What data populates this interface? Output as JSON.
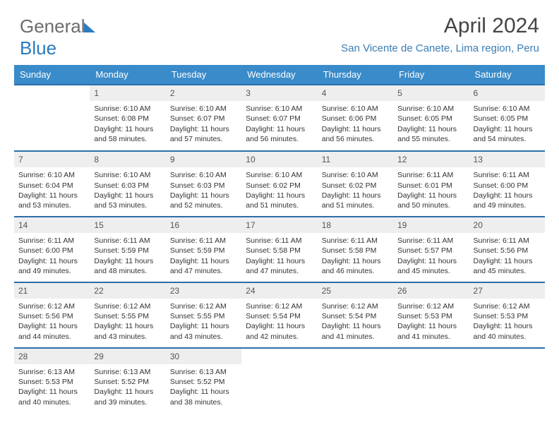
{
  "logo": {
    "text_general": "General",
    "text_blue": "Blue"
  },
  "header": {
    "title": "April 2024",
    "location": "San Vicente de Canete, Lima region, Peru"
  },
  "colors": {
    "header_bg": "#3a8bc9",
    "header_text": "#ffffff",
    "week_border": "#2b6fa8",
    "daynum_bg": "#eeeeee",
    "logo_gray": "#6c6c6c",
    "logo_blue": "#2b7bbf",
    "location_text": "#3a7db5"
  },
  "day_labels": [
    "Sunday",
    "Monday",
    "Tuesday",
    "Wednesday",
    "Thursday",
    "Friday",
    "Saturday"
  ],
  "weeks": [
    [
      {
        "n": "",
        "lines": [
          "",
          "",
          "",
          ""
        ]
      },
      {
        "n": "1",
        "lines": [
          "Sunrise: 6:10 AM",
          "Sunset: 6:08 PM",
          "Daylight: 11 hours",
          "and 58 minutes."
        ]
      },
      {
        "n": "2",
        "lines": [
          "Sunrise: 6:10 AM",
          "Sunset: 6:07 PM",
          "Daylight: 11 hours",
          "and 57 minutes."
        ]
      },
      {
        "n": "3",
        "lines": [
          "Sunrise: 6:10 AM",
          "Sunset: 6:07 PM",
          "Daylight: 11 hours",
          "and 56 minutes."
        ]
      },
      {
        "n": "4",
        "lines": [
          "Sunrise: 6:10 AM",
          "Sunset: 6:06 PM",
          "Daylight: 11 hours",
          "and 56 minutes."
        ]
      },
      {
        "n": "5",
        "lines": [
          "Sunrise: 6:10 AM",
          "Sunset: 6:05 PM",
          "Daylight: 11 hours",
          "and 55 minutes."
        ]
      },
      {
        "n": "6",
        "lines": [
          "Sunrise: 6:10 AM",
          "Sunset: 6:05 PM",
          "Daylight: 11 hours",
          "and 54 minutes."
        ]
      }
    ],
    [
      {
        "n": "7",
        "lines": [
          "Sunrise: 6:10 AM",
          "Sunset: 6:04 PM",
          "Daylight: 11 hours",
          "and 53 minutes."
        ]
      },
      {
        "n": "8",
        "lines": [
          "Sunrise: 6:10 AM",
          "Sunset: 6:03 PM",
          "Daylight: 11 hours",
          "and 53 minutes."
        ]
      },
      {
        "n": "9",
        "lines": [
          "Sunrise: 6:10 AM",
          "Sunset: 6:03 PM",
          "Daylight: 11 hours",
          "and 52 minutes."
        ]
      },
      {
        "n": "10",
        "lines": [
          "Sunrise: 6:10 AM",
          "Sunset: 6:02 PM",
          "Daylight: 11 hours",
          "and 51 minutes."
        ]
      },
      {
        "n": "11",
        "lines": [
          "Sunrise: 6:10 AM",
          "Sunset: 6:02 PM",
          "Daylight: 11 hours",
          "and 51 minutes."
        ]
      },
      {
        "n": "12",
        "lines": [
          "Sunrise: 6:11 AM",
          "Sunset: 6:01 PM",
          "Daylight: 11 hours",
          "and 50 minutes."
        ]
      },
      {
        "n": "13",
        "lines": [
          "Sunrise: 6:11 AM",
          "Sunset: 6:00 PM",
          "Daylight: 11 hours",
          "and 49 minutes."
        ]
      }
    ],
    [
      {
        "n": "14",
        "lines": [
          "Sunrise: 6:11 AM",
          "Sunset: 6:00 PM",
          "Daylight: 11 hours",
          "and 49 minutes."
        ]
      },
      {
        "n": "15",
        "lines": [
          "Sunrise: 6:11 AM",
          "Sunset: 5:59 PM",
          "Daylight: 11 hours",
          "and 48 minutes."
        ]
      },
      {
        "n": "16",
        "lines": [
          "Sunrise: 6:11 AM",
          "Sunset: 5:59 PM",
          "Daylight: 11 hours",
          "and 47 minutes."
        ]
      },
      {
        "n": "17",
        "lines": [
          "Sunrise: 6:11 AM",
          "Sunset: 5:58 PM",
          "Daylight: 11 hours",
          "and 47 minutes."
        ]
      },
      {
        "n": "18",
        "lines": [
          "Sunrise: 6:11 AM",
          "Sunset: 5:58 PM",
          "Daylight: 11 hours",
          "and 46 minutes."
        ]
      },
      {
        "n": "19",
        "lines": [
          "Sunrise: 6:11 AM",
          "Sunset: 5:57 PM",
          "Daylight: 11 hours",
          "and 45 minutes."
        ]
      },
      {
        "n": "20",
        "lines": [
          "Sunrise: 6:11 AM",
          "Sunset: 5:56 PM",
          "Daylight: 11 hours",
          "and 45 minutes."
        ]
      }
    ],
    [
      {
        "n": "21",
        "lines": [
          "Sunrise: 6:12 AM",
          "Sunset: 5:56 PM",
          "Daylight: 11 hours",
          "and 44 minutes."
        ]
      },
      {
        "n": "22",
        "lines": [
          "Sunrise: 6:12 AM",
          "Sunset: 5:55 PM",
          "Daylight: 11 hours",
          "and 43 minutes."
        ]
      },
      {
        "n": "23",
        "lines": [
          "Sunrise: 6:12 AM",
          "Sunset: 5:55 PM",
          "Daylight: 11 hours",
          "and 43 minutes."
        ]
      },
      {
        "n": "24",
        "lines": [
          "Sunrise: 6:12 AM",
          "Sunset: 5:54 PM",
          "Daylight: 11 hours",
          "and 42 minutes."
        ]
      },
      {
        "n": "25",
        "lines": [
          "Sunrise: 6:12 AM",
          "Sunset: 5:54 PM",
          "Daylight: 11 hours",
          "and 41 minutes."
        ]
      },
      {
        "n": "26",
        "lines": [
          "Sunrise: 6:12 AM",
          "Sunset: 5:53 PM",
          "Daylight: 11 hours",
          "and 41 minutes."
        ]
      },
      {
        "n": "27",
        "lines": [
          "Sunrise: 6:12 AM",
          "Sunset: 5:53 PM",
          "Daylight: 11 hours",
          "and 40 minutes."
        ]
      }
    ],
    [
      {
        "n": "28",
        "lines": [
          "Sunrise: 6:13 AM",
          "Sunset: 5:53 PM",
          "Daylight: 11 hours",
          "and 40 minutes."
        ]
      },
      {
        "n": "29",
        "lines": [
          "Sunrise: 6:13 AM",
          "Sunset: 5:52 PM",
          "Daylight: 11 hours",
          "and 39 minutes."
        ]
      },
      {
        "n": "30",
        "lines": [
          "Sunrise: 6:13 AM",
          "Sunset: 5:52 PM",
          "Daylight: 11 hours",
          "and 38 minutes."
        ]
      },
      {
        "n": "",
        "lines": [
          "",
          "",
          "",
          ""
        ]
      },
      {
        "n": "",
        "lines": [
          "",
          "",
          "",
          ""
        ]
      },
      {
        "n": "",
        "lines": [
          "",
          "",
          "",
          ""
        ]
      },
      {
        "n": "",
        "lines": [
          "",
          "",
          "",
          ""
        ]
      }
    ]
  ]
}
